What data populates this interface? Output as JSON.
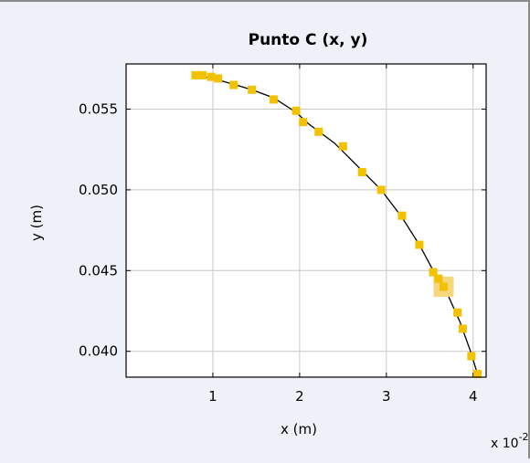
{
  "chart_data": {
    "type": "scatter",
    "title": "Punto C (x, y)",
    "xlabel": "x (m)",
    "ylabel": "y (m)",
    "x_exponent_label": "x 10",
    "x_exponent_power": "-2",
    "xlim": [
      0.0,
      4.15
    ],
    "ylim": [
      0.0384,
      0.0578
    ],
    "xticks": [
      1,
      2,
      3,
      4
    ],
    "xtick_labels": [
      "1",
      "2",
      "3",
      "4"
    ],
    "yticks": [
      0.04,
      0.045,
      0.05,
      0.055
    ],
    "ytick_labels": [
      "0.040",
      "0.045",
      "0.050",
      "0.055"
    ],
    "grid": true,
    "colors": {
      "marker": "#f2c200",
      "highlight": "#f7d77e",
      "line": "#000000",
      "axes_bg": "#ffffff",
      "figure_bg": "#eef2f8"
    },
    "series": [
      {
        "x": [
          0.8,
          0.88,
          0.98,
          1.06,
          1.24,
          1.45,
          1.7,
          1.96,
          2.04,
          2.22,
          2.5,
          2.72,
          2.94,
          3.18,
          3.38,
          3.54,
          3.6,
          3.66,
          3.82,
          3.88,
          3.98,
          4.05
        ],
        "y": [
          0.0571,
          0.0571,
          0.057,
          0.0569,
          0.0565,
          0.0562,
          0.0556,
          0.0549,
          0.0542,
          0.0536,
          0.0527,
          0.0511,
          0.05,
          0.0484,
          0.0466,
          0.0449,
          0.0445,
          0.044,
          0.0424,
          0.0414,
          0.0397,
          0.0386
        ]
      }
    ],
    "fit_line": {
      "x": [
        0.8,
        1.0,
        1.2,
        1.45,
        1.7,
        1.96,
        2.1,
        2.4,
        2.7,
        2.94,
        3.18,
        3.38,
        3.55,
        3.7,
        3.85,
        3.97,
        4.05
      ],
      "y": [
        0.0571,
        0.0569,
        0.0566,
        0.0562,
        0.0557,
        0.0548,
        0.0541,
        0.0529,
        0.0513,
        0.05,
        0.0483,
        0.0466,
        0.0449,
        0.0436,
        0.0418,
        0.04,
        0.0386
      ]
    },
    "highlighted_point_index": 17
  }
}
